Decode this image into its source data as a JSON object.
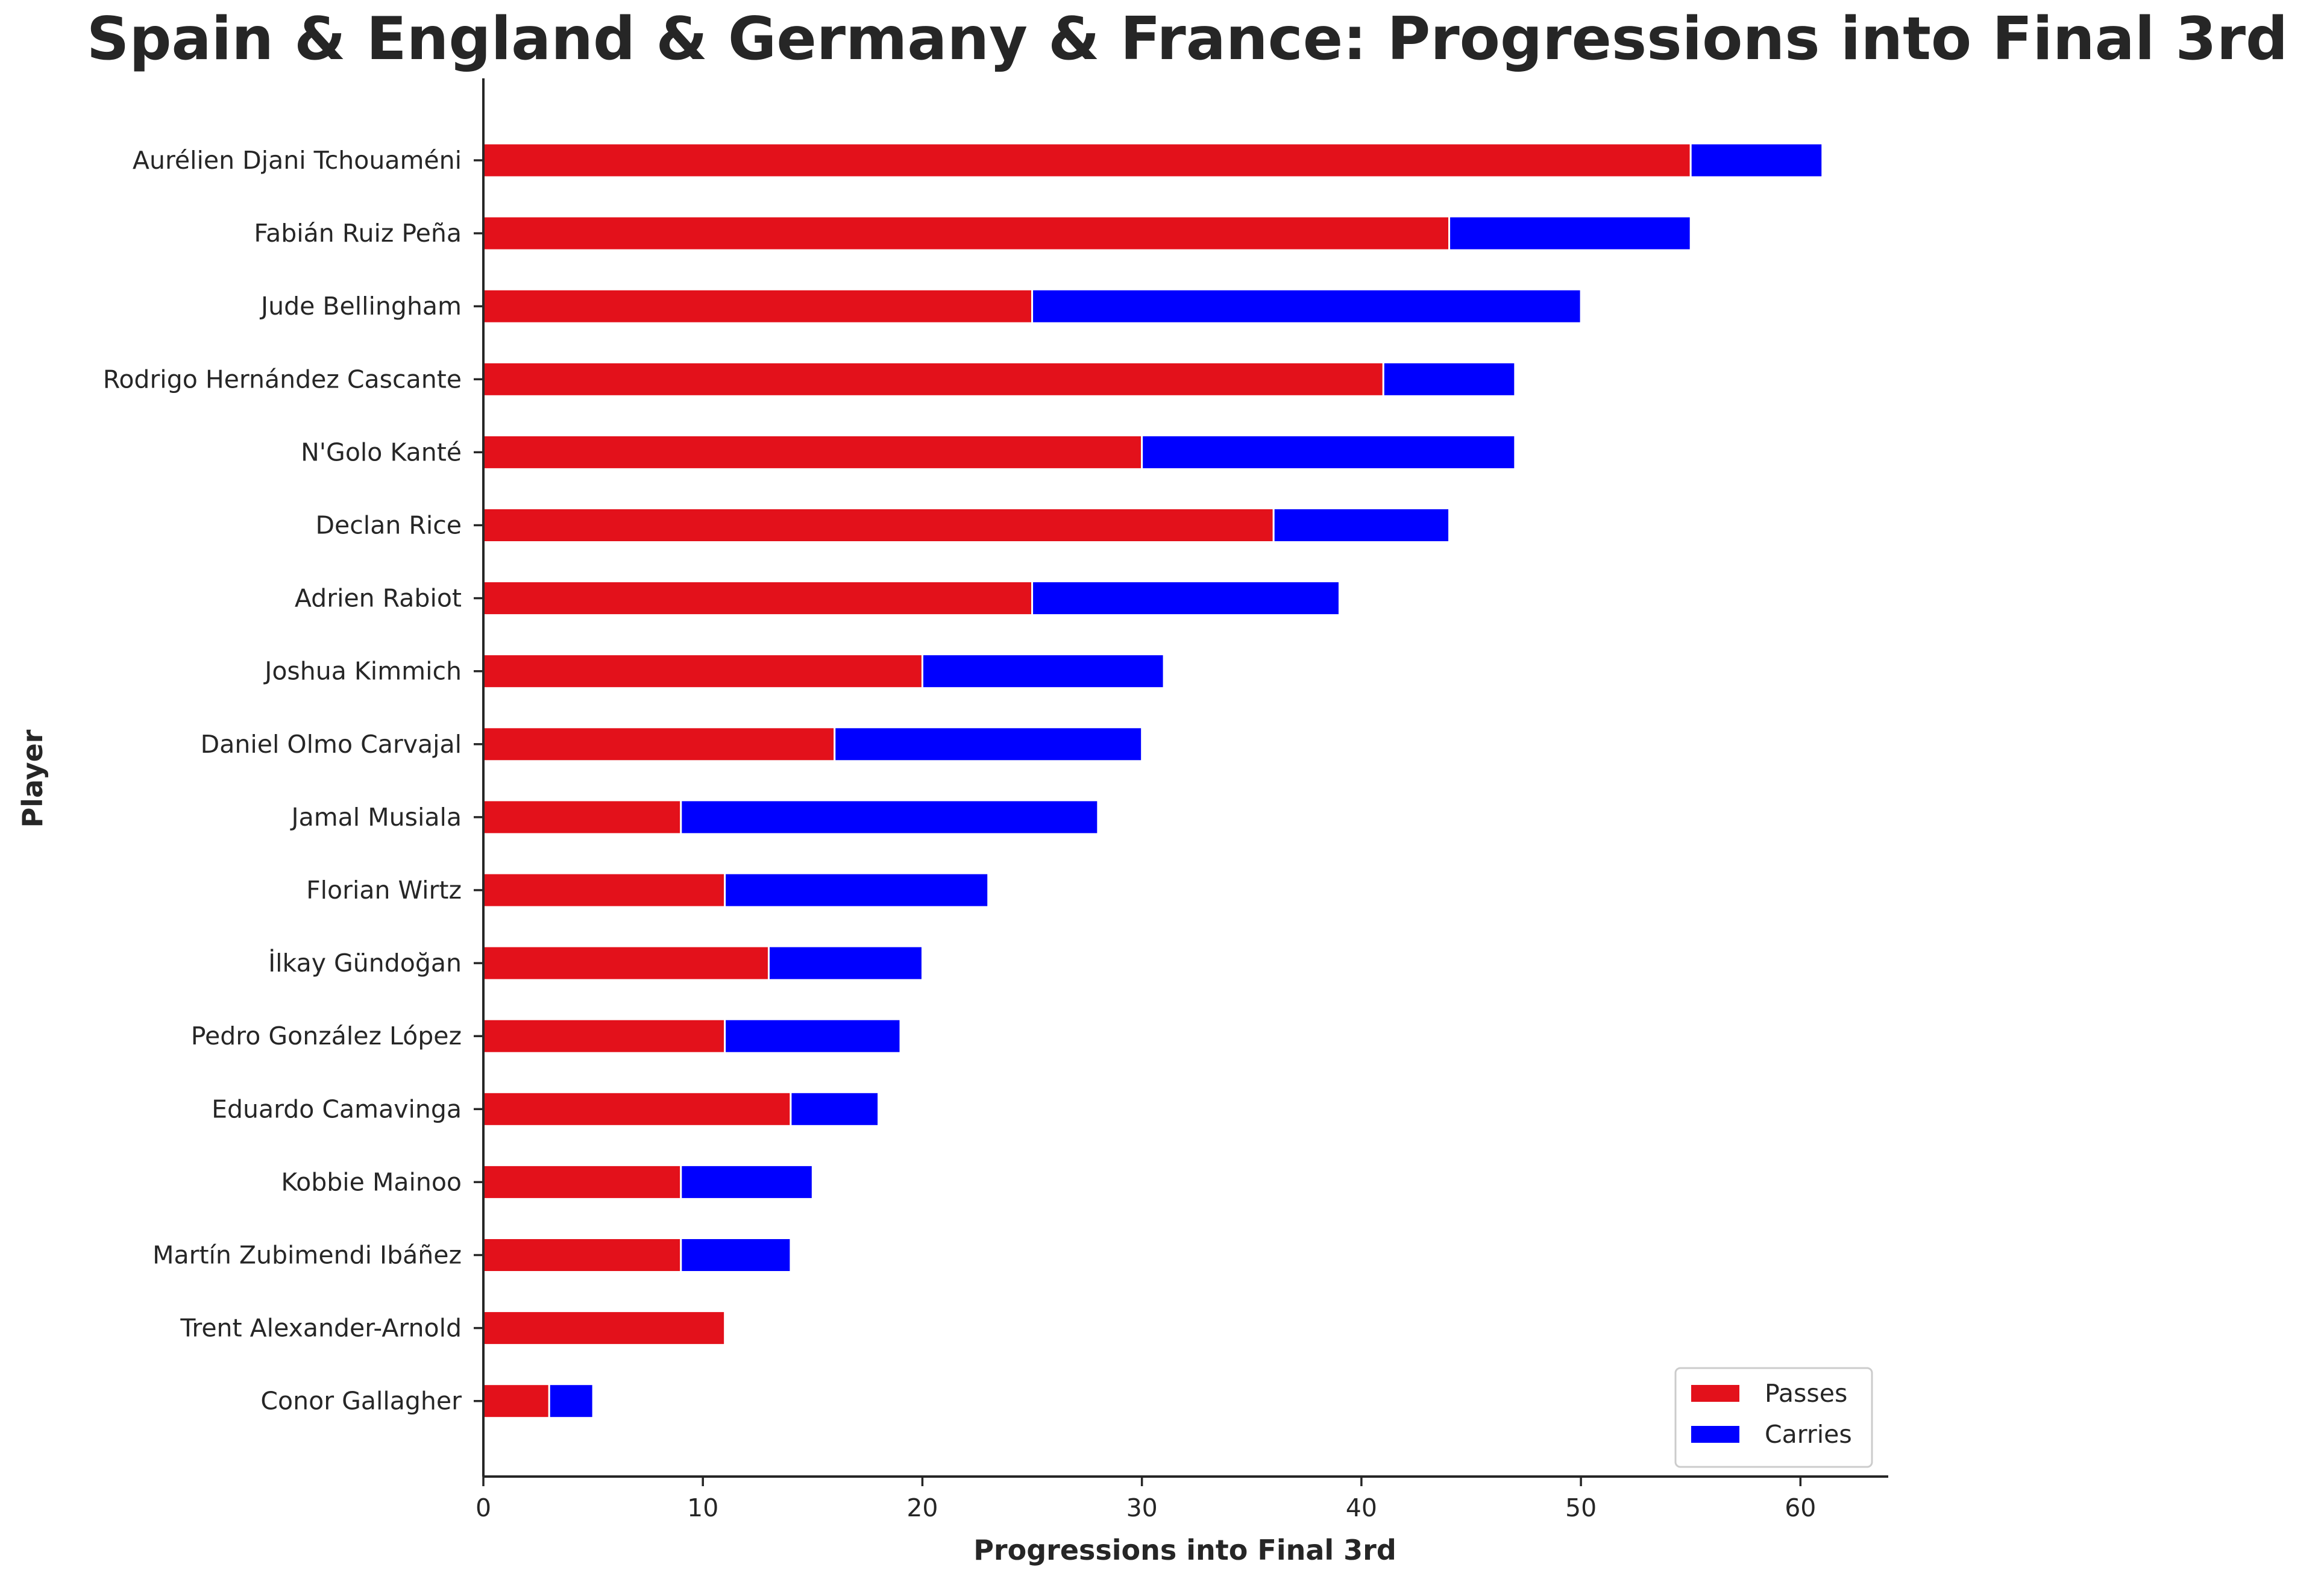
{
  "chart_data": {
    "type": "bar",
    "orientation": "horizontal",
    "stacked": true,
    "title": "Spain & England & Germany & France: Progressions into Final 3rd",
    "xlabel": "Progressions into Final 3rd",
    "ylabel": "Player",
    "xlim": [
      0,
      64
    ],
    "xticks": [
      0,
      10,
      20,
      30,
      40,
      50,
      60
    ],
    "grid": false,
    "legend_position": "bottom-right",
    "categories": [
      "Aurélien Djani Tchouaméni",
      "Fabián Ruiz Peña",
      "Jude Bellingham",
      "Rodrigo Hernández Cascante",
      "N'Golo Kanté",
      "Declan Rice",
      "Adrien Rabiot",
      "Joshua Kimmich",
      "Daniel Olmo Carvajal",
      "Jamal Musiala",
      "Florian Wirtz",
      "İlkay Gündoğan",
      "Pedro González López",
      "Eduardo Camavinga",
      "Kobbie Mainoo",
      "Martín Zubimendi Ibáñez",
      "Trent Alexander-Arnold",
      "Conor Gallagher"
    ],
    "series": [
      {
        "name": "Passes",
        "color": "#e3111b",
        "values": [
          55,
          44,
          25,
          41,
          30,
          36,
          25,
          20,
          16,
          9,
          11,
          13,
          11,
          14,
          9,
          9,
          11,
          3
        ]
      },
      {
        "name": "Carries",
        "color": "#0000ff",
        "values": [
          6,
          11,
          25,
          6,
          17,
          8,
          14,
          11,
          14,
          19,
          12,
          7,
          8,
          4,
          6,
          5,
          0,
          2
        ]
      }
    ]
  }
}
